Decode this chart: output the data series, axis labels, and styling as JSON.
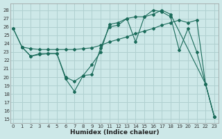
{
  "xlabel": "Humidex (Indice chaleur)",
  "bg_color": "#cde8e8",
  "grid_color": "#b0d0d0",
  "line_color": "#1a6b5a",
  "xlim": [
    -0.3,
    23.5
  ],
  "ylim": [
    14.5,
    28.8
  ],
  "yticks": [
    15,
    16,
    17,
    18,
    19,
    20,
    21,
    22,
    23,
    24,
    25,
    26,
    27,
    28
  ],
  "xticks": [
    0,
    1,
    2,
    3,
    4,
    5,
    6,
    7,
    8,
    9,
    10,
    11,
    12,
    13,
    14,
    15,
    16,
    17,
    18,
    19,
    20,
    21,
    22,
    23
  ],
  "line1_x": [
    0,
    1,
    2,
    3,
    4,
    5,
    6,
    7,
    8,
    9,
    10,
    11,
    12,
    13,
    14,
    15,
    16,
    17,
    18,
    19,
    20,
    21,
    22,
    23
  ],
  "line1_y": [
    25.8,
    23.6,
    23.4,
    23.3,
    23.3,
    23.3,
    23.3,
    23.3,
    23.4,
    23.5,
    23.8,
    24.2,
    24.5,
    24.8,
    25.2,
    25.5,
    25.8,
    26.2,
    26.5,
    26.8,
    26.5,
    26.8,
    19.2,
    15.3
  ],
  "line2_x": [
    1,
    2,
    3,
    4,
    5,
    6,
    7,
    8,
    9,
    10,
    11,
    12,
    13,
    14,
    15,
    16,
    17,
    18,
    19,
    20,
    21,
    22,
    23
  ],
  "line2_y": [
    23.6,
    22.5,
    22.7,
    22.8,
    22.8,
    19.8,
    18.3,
    20.2,
    21.5,
    23.0,
    26.3,
    26.5,
    27.0,
    24.2,
    27.2,
    28.0,
    27.8,
    27.2,
    23.2,
    25.8,
    23.0,
    19.2,
    15.3
  ],
  "line3_x": [
    0,
    1,
    2,
    3,
    4,
    5,
    6,
    7,
    8,
    9,
    10,
    11,
    12,
    13,
    14,
    15,
    16,
    17,
    18,
    22,
    23
  ],
  "line3_y": [
    25.8,
    23.6,
    22.5,
    22.8,
    22.8,
    22.8,
    20.0,
    19.5,
    20.2,
    20.3,
    23.5,
    26.0,
    26.2,
    27.0,
    27.2,
    27.2,
    27.5,
    28.0,
    27.5,
    19.2,
    15.3
  ]
}
